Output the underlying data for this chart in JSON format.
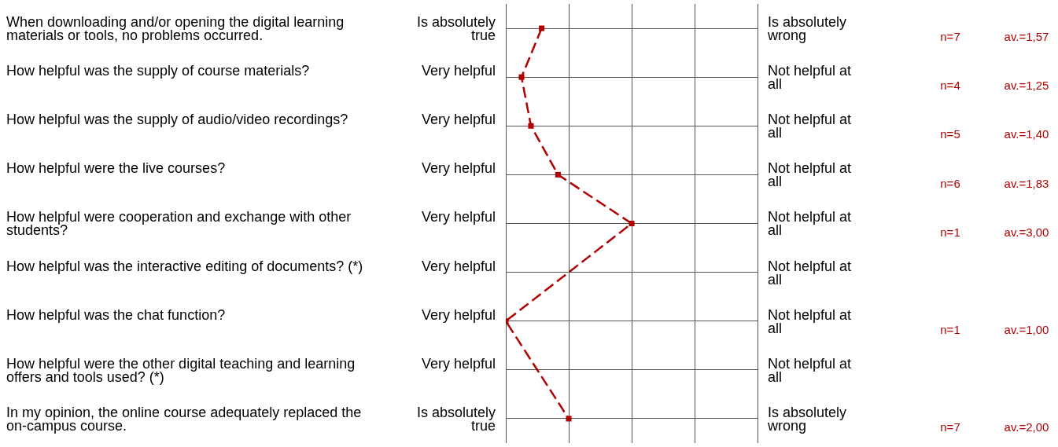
{
  "chart_data": {
    "type": "line",
    "orientation": "horizontal",
    "categories": [
      "When downloading and/or opening the digital learning materials or tools, no problems occurred.",
      "How helpful was the supply of course materials?",
      "How helpful was the supply of audio/video recordings?",
      "How helpful were the live courses?",
      "How helpful were cooperation and exchange with other students?",
      "How helpful was the interactive editing of documents? (*)",
      "How helpful was the chat function?",
      "How helpful were the other digital teaching and learning offers and tools used? (*)",
      "In my opinion, the online course adequately replaced the on-campus course."
    ],
    "series": [
      {
        "color": "#b00000",
        "values": [
          1.57,
          1.25,
          1.4,
          1.83,
          3.0,
          null,
          1.0,
          null,
          2.0
        ],
        "value_labels": [
          "av.=1,57",
          "av.=1,25",
          "av.=1,40",
          "av.=1,83",
          "av.=3,00",
          null,
          "av.=1,00",
          null,
          "av.=2,00"
        ]
      }
    ],
    "xlim": [
      1,
      5
    ],
    "xticks": [
      {
        "value": 1,
        "label": null
      },
      {
        "value": 2,
        "label": null
      },
      {
        "value": 3,
        "label": null
      },
      {
        "value": 4,
        "label": null
      },
      {
        "value": 5,
        "label": null
      }
    ],
    "grid": true,
    "legend": false,
    "marker": "square",
    "line_style": "dashed",
    "tick_labels": "y",
    "annotations": [
      "Is absolutely true",
      "Is absolutely wrong",
      "n=7",
      "Very helpful",
      "Not helpful at all",
      "n=4",
      "Very helpful",
      "Not helpful at all",
      "n=5",
      "Very helpful",
      "Not helpful at all",
      "n=6",
      "Very helpful",
      "Not helpful at all",
      "n=1",
      "Very helpful",
      "Not helpful at all",
      "Very helpful",
      "Not helpful at all",
      "n=1",
      "Very helpful",
      "Not helpful at all",
      "Is absolutely true",
      "Is absolutely wrong",
      "n=7"
    ]
  }
}
